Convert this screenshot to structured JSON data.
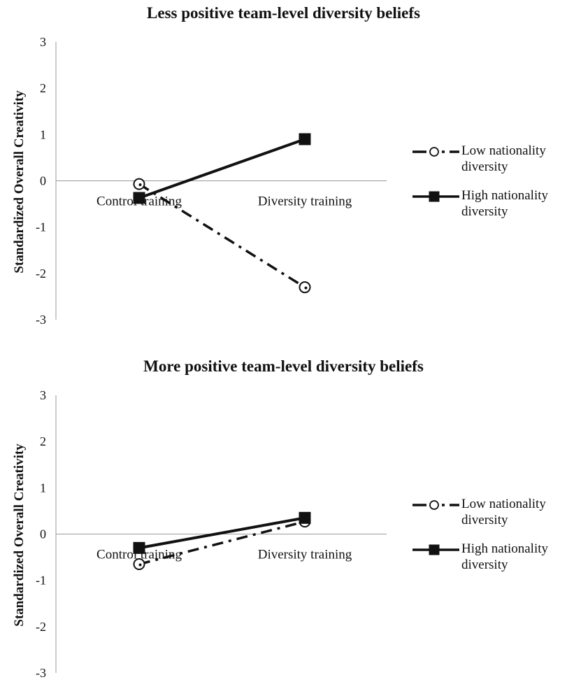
{
  "chart_data": [
    {
      "type": "line",
      "title": "Less positive team-level diversity beliefs",
      "ylabel": "Standardized Overall Creativity",
      "xlabel": "",
      "categories": [
        "Control training",
        "Diversity training"
      ],
      "ylim": [
        -3,
        3
      ],
      "yticks": [
        "3",
        "2",
        "1",
        "0",
        "-1",
        "-2",
        "-3"
      ],
      "ytick_values": [
        3,
        2,
        1,
        0,
        -1,
        -2,
        -3
      ],
      "grid": false,
      "legend_position": "right",
      "series": [
        {
          "name": "Low nationality diversity",
          "name_lines": [
            "Low nationality",
            "diversity"
          ],
          "values": [
            -0.07,
            -2.3
          ],
          "style": "dash-dot",
          "marker": "open-circle",
          "color": "#111111"
        },
        {
          "name": "High nationality diversity",
          "name_lines": [
            "High nationality",
            "diversity"
          ],
          "values": [
            -0.37,
            0.9
          ],
          "style": "solid",
          "marker": "filled-square",
          "color": "#111111"
        }
      ]
    },
    {
      "type": "line",
      "title": "More positive team-level diversity beliefs",
      "ylabel": "Standardized Overall Creativity",
      "xlabel": "",
      "categories": [
        "Control training",
        "Diversity training"
      ],
      "ylim": [
        -3,
        3
      ],
      "yticks": [
        "3",
        "2",
        "1",
        "0",
        "-1",
        "-2",
        "-3"
      ],
      "ytick_values": [
        3,
        2,
        1,
        0,
        -1,
        -2,
        -3
      ],
      "grid": false,
      "legend_position": "right",
      "series": [
        {
          "name": "Low nationality diversity",
          "name_lines": [
            "Low nationality",
            "diversity"
          ],
          "values": [
            -0.65,
            0.27
          ],
          "style": "dash-dot",
          "marker": "open-circle",
          "color": "#111111"
        },
        {
          "name": "High nationality diversity",
          "name_lines": [
            "High nationality",
            "diversity"
          ],
          "values": [
            -0.3,
            0.35
          ],
          "style": "solid",
          "marker": "filled-square",
          "color": "#111111"
        }
      ]
    }
  ],
  "colors": {
    "line": "#111111",
    "axis": "#999999",
    "background": "#ffffff"
  }
}
